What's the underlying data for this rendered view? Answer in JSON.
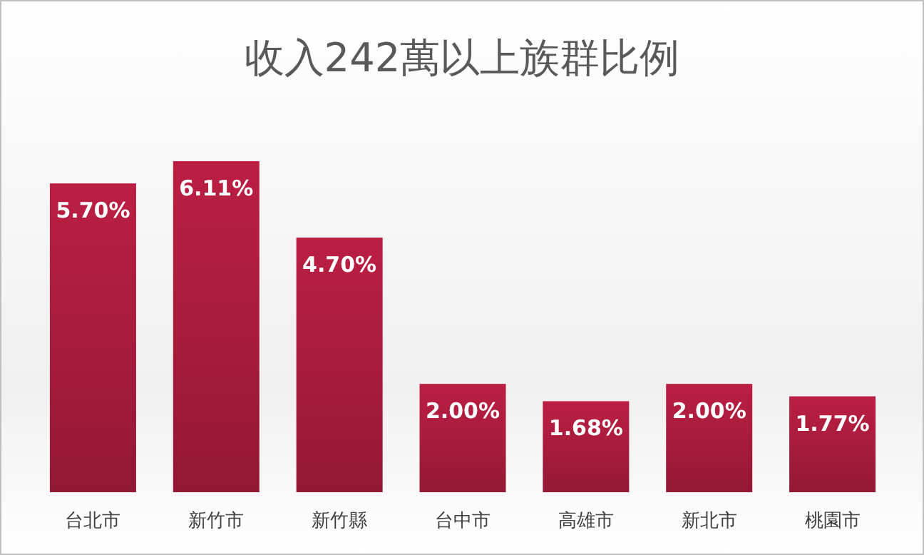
{
  "chart_data": {
    "type": "bar",
    "title": "收入242萬以上族群比例",
    "categories": [
      "台北市",
      "新竹市",
      "新竹縣",
      "台中市",
      "高雄市",
      "新北市",
      "桃園市"
    ],
    "values": [
      5.7,
      6.11,
      4.7,
      2.0,
      1.68,
      2.0,
      1.77
    ],
    "value_labels": [
      "5.70%",
      "6.11%",
      "4.70%",
      "2.00%",
      "1.68%",
      "2.00%",
      "1.77%"
    ],
    "color": "#a81c3c"
  }
}
